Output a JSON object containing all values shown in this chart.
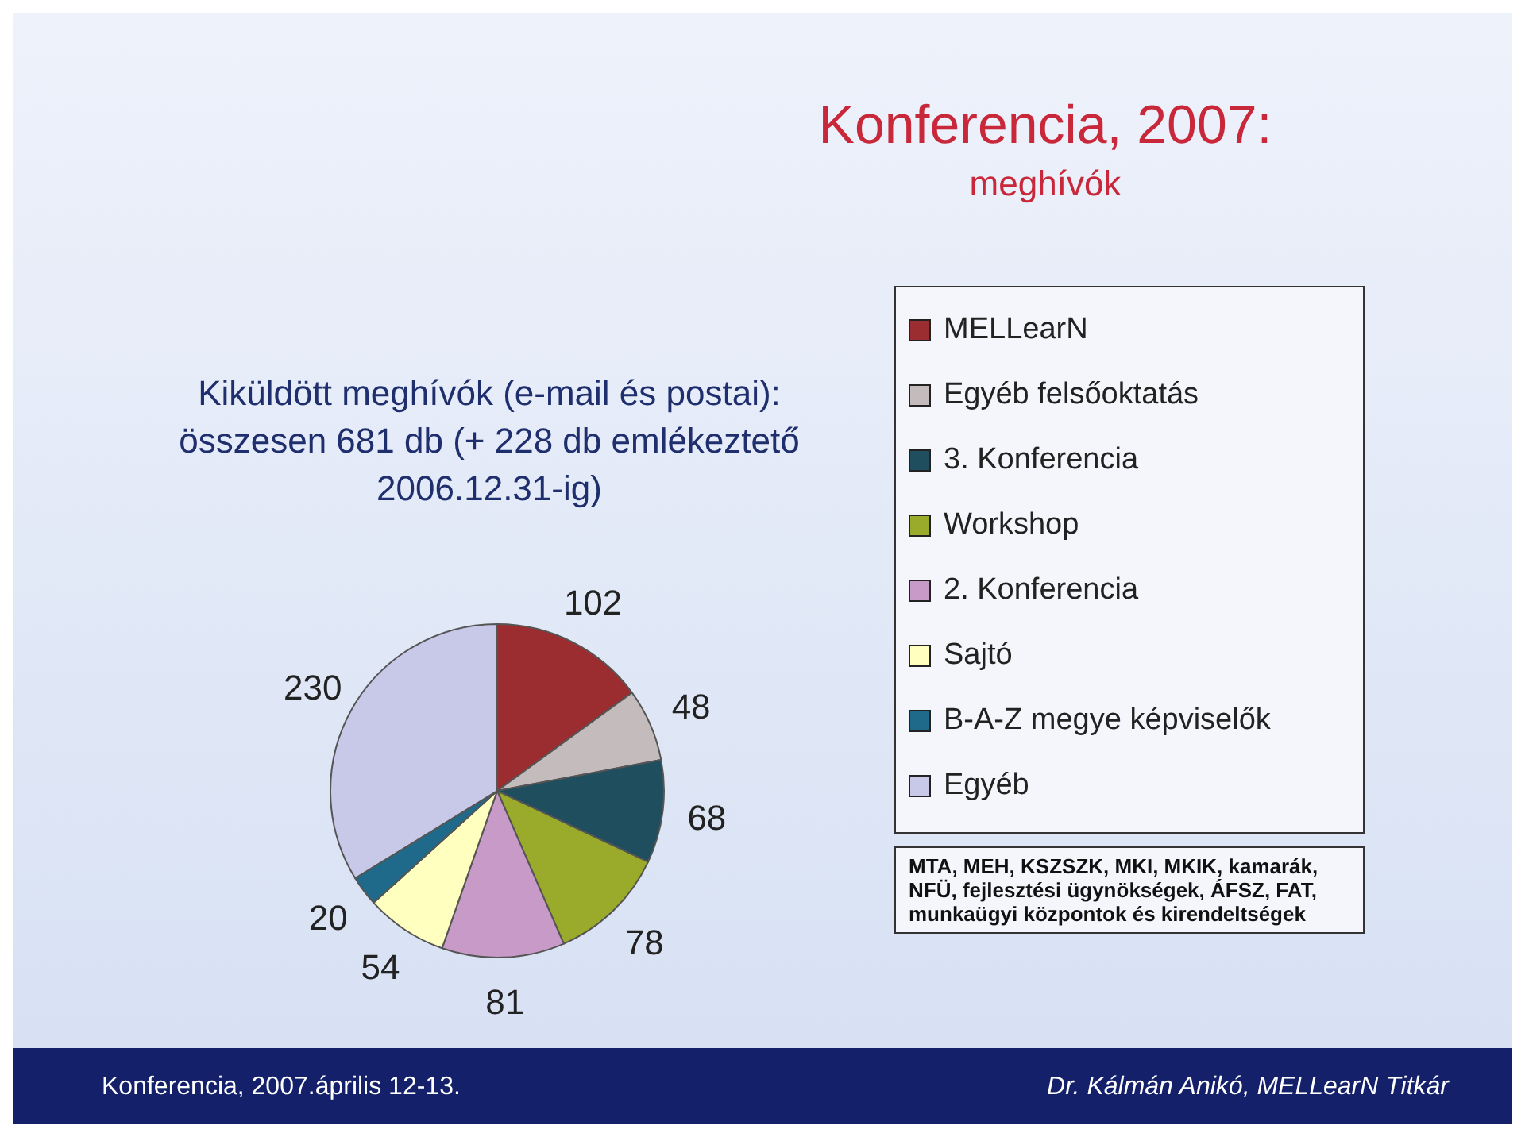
{
  "chart_data": {
    "type": "pie",
    "title": "Konferencia, 2007:",
    "subtitle": "meghívók",
    "categories": [
      "MELLearN",
      "Egyéb felsőoktatás",
      "3. Konferencia",
      "Workshop",
      "2. Konferencia",
      "Sajtó",
      "B-A-Z megye képviselők",
      "Egyéb"
    ],
    "values": [
      102,
      48,
      68,
      78,
      81,
      54,
      20,
      230
    ],
    "colors": [
      "#9b2d30",
      "#c4bcbc",
      "#1f4e5f",
      "#9aaa2a",
      "#c89ac8",
      "#ffffc0",
      "#1f6a8a",
      "#c8c8e8"
    ],
    "data_labels": true,
    "legend": "right",
    "annotations": [
      "Kiküldött meghívók (e-mail és postai): összesen 681 db (+ 228 db emlékeztető 2006.12.31-ig)",
      "MTA, MEH, KSZSZK, MKI, MKIK, kamarák, NFÜ, fejlesztési ügynökségek, ÁFSZ, FAT, munkaügyi központok és kirendeltségek",
      "Konferencia, 2007.április 12-13.",
      "Dr. Kálmán Anikó, MELLearN Titkár"
    ]
  }
}
